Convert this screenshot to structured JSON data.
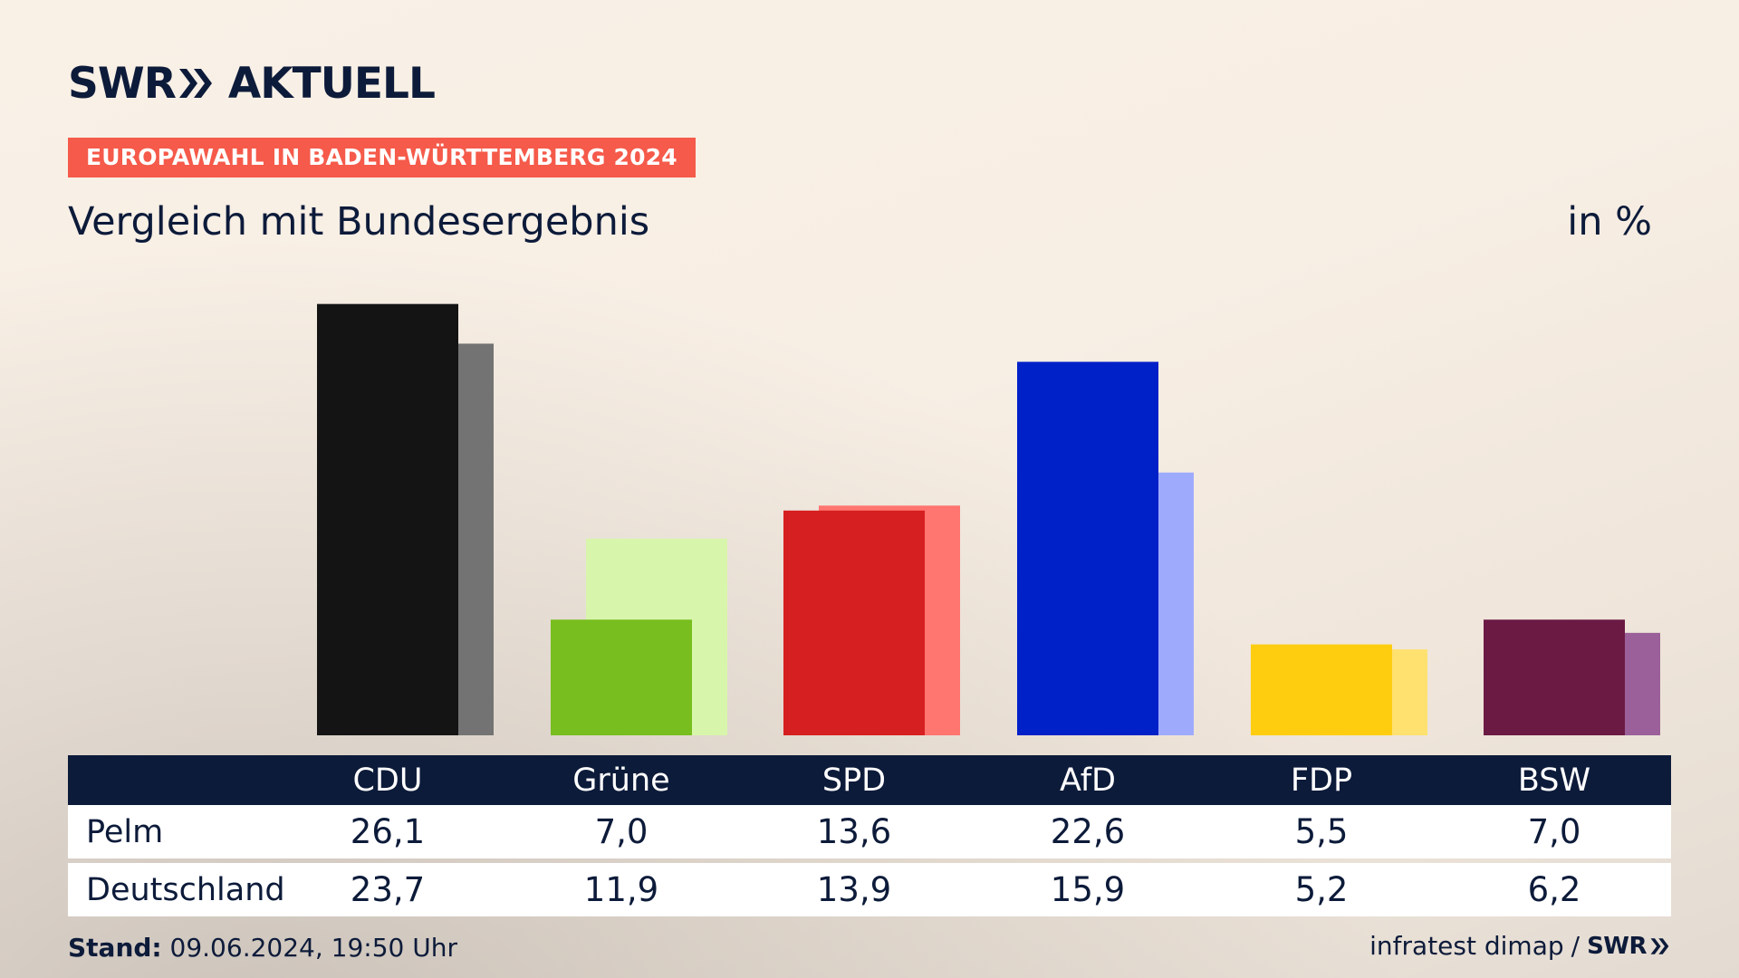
{
  "brand": {
    "logo_text": "SWR",
    "logo_suffix": "AKTUELL"
  },
  "badge": "EUROPAWAHL IN BADEN-WÜRTTEMBERG 2024",
  "subtitle": "Vergleich mit Bundesergebnis",
  "unit": "in %",
  "footer": {
    "stand_label": "Stand:",
    "stand_value": "09.06.2024, 19:50 Uhr",
    "source": "infratest dimap",
    "separator": "/",
    "source_brand": "SWR"
  },
  "chart_data": {
    "type": "bar",
    "categories": [
      "CDU",
      "Grüne",
      "SPD",
      "AfD",
      "FDP",
      "BSW"
    ],
    "series": [
      {
        "name": "Pelm",
        "values": [
          26.1,
          7.0,
          13.6,
          22.6,
          5.5,
          7.0
        ],
        "colors": [
          "#141414",
          "#78be1e",
          "#d61f20",
          "#0020c8",
          "#ffcd0f",
          "#6b1a44"
        ]
      },
      {
        "name": "Deutschland",
        "values": [
          23.7,
          11.9,
          13.9,
          15.9,
          5.2,
          6.2
        ],
        "colors": [
          "#737373",
          "#d8f5ac",
          "#ff7570",
          "#9eabfd",
          "#ffe170",
          "#9b6099"
        ]
      }
    ],
    "table": {
      "headers": [
        "CDU",
        "Grüne",
        "SPD",
        "AfD",
        "FDP",
        "BSW"
      ],
      "rows": [
        {
          "label": "Pelm",
          "values": [
            "26,1",
            "7,0",
            "13,6",
            "22,6",
            "5,5",
            "7,0"
          ]
        },
        {
          "label": "Deutschland",
          "values": [
            "23,7",
            "11,9",
            "13,9",
            "15,9",
            "5,2",
            "6,2"
          ]
        }
      ]
    },
    "grid": false
  }
}
